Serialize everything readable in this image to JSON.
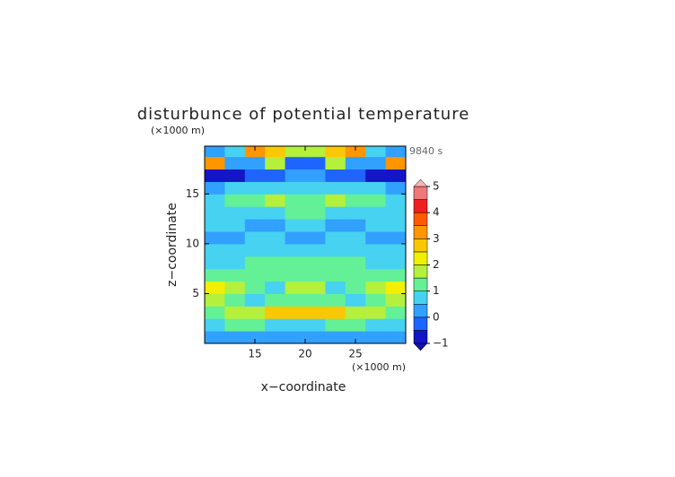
{
  "chart_data": {
    "type": "contour",
    "title": "disturbunce of potential temperature",
    "y_unit": "(×1000 m)",
    "x_unit": "(×1000 m)",
    "time_label": "9840 s",
    "x_label": "x−coordinate",
    "y_label": "z−coordinate",
    "xlim": [
      10,
      30
    ],
    "ylim": [
      0,
      19.8
    ],
    "xticks": [
      15,
      20,
      25
    ],
    "yticks": [
      5,
      10,
      15
    ],
    "x": [
      11,
      13,
      15,
      17,
      19,
      21,
      23,
      25,
      27,
      29
    ],
    "y": [
      0.6,
      1.9,
      3.1,
      4.4,
      5.6,
      6.9,
      8.1,
      9.4,
      10.6,
      11.9,
      13.1,
      14.4,
      15.6,
      16.9,
      18.1,
      19.4
    ],
    "z": [
      [
        0.3,
        0.3,
        0.4,
        0.4,
        0.4,
        0.4,
        0.4,
        0.3,
        0.3,
        0.3
      ],
      [
        0.8,
        1.2,
        1.0,
        0.9,
        0.9,
        0.9,
        1.0,
        1.2,
        0.8,
        0.8
      ],
      [
        1.0,
        1.5,
        1.8,
        2.5,
        2.8,
        2.8,
        2.5,
        1.8,
        1.5,
        1.0
      ],
      [
        1.8,
        1.2,
        0.8,
        1.0,
        1.2,
        1.2,
        1.0,
        0.8,
        1.2,
        1.8
      ],
      [
        2.4,
        1.8,
        1.2,
        0.8,
        1.6,
        1.6,
        0.8,
        1.2,
        1.8,
        2.4
      ],
      [
        1.2,
        1.4,
        1.0,
        1.2,
        1.0,
        1.0,
        1.2,
        1.0,
        1.4,
        1.2
      ],
      [
        0.6,
        0.8,
        1.2,
        1.0,
        1.3,
        1.3,
        1.0,
        1.2,
        0.8,
        0.6
      ],
      [
        0.5,
        0.6,
        0.5,
        0.8,
        0.6,
        0.6,
        0.8,
        0.5,
        0.6,
        0.5
      ],
      [
        0.3,
        0.4,
        0.6,
        0.5,
        0.4,
        0.4,
        0.5,
        0.6,
        0.4,
        0.3
      ],
      [
        0.6,
        0.5,
        0.3,
        0.4,
        0.5,
        0.5,
        0.4,
        0.3,
        0.5,
        0.6
      ],
      [
        0.9,
        0.6,
        0.5,
        0.8,
        1.2,
        1.2,
        0.8,
        0.5,
        0.6,
        0.9
      ],
      [
        0.8,
        1.0,
        1.3,
        1.8,
        1.0,
        1.0,
        1.8,
        1.3,
        1.0,
        0.8
      ],
      [
        0.4,
        0.5,
        0.6,
        0.5,
        0.8,
        0.8,
        0.5,
        0.6,
        0.5,
        0.4
      ],
      [
        -0.6,
        -0.6,
        -0.5,
        -0.3,
        0.2,
        0.2,
        -0.3,
        -0.5,
        -0.6,
        -0.6
      ],
      [
        3.0,
        0.0,
        0.0,
        1.5,
        -0.5,
        -0.5,
        1.5,
        0.0,
        0.0,
        3.0
      ],
      [
        0.2,
        0.8,
        3.2,
        2.5,
        1.5,
        1.5,
        2.5,
        3.2,
        0.8,
        0.2
      ]
    ],
    "colorbar": {
      "levels": [
        -1,
        -0.5,
        0,
        0.5,
        1,
        1.5,
        2,
        2.5,
        3,
        3.5,
        4,
        4.5,
        5
      ],
      "colors": [
        "#1414c8",
        "#1e64ff",
        "#32a0ff",
        "#46d2f0",
        "#64f096",
        "#b4f03c",
        "#f0f000",
        "#fac800",
        "#ff9600",
        "#ff5a00",
        "#f01e1e",
        "#f07878"
      ],
      "under": "#1414a0",
      "over": "#f5b4b4",
      "ticks": [
        {
          "value": -1,
          "label": "−1"
        },
        0,
        1,
        2,
        3,
        4,
        5
      ]
    }
  }
}
